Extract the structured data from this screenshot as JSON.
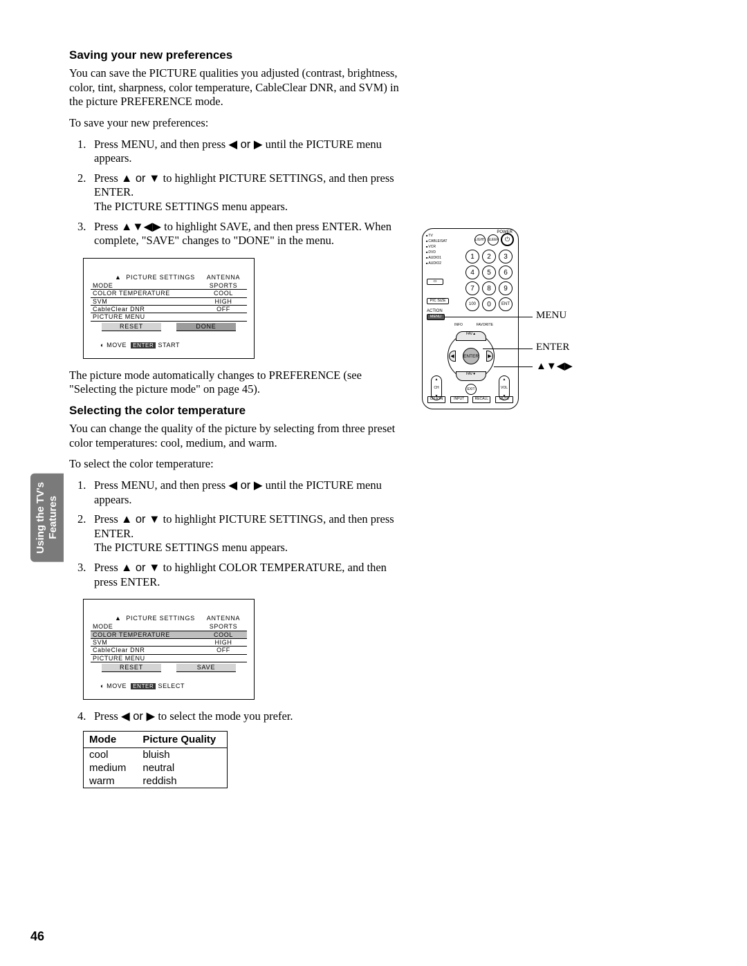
{
  "page_number": "46",
  "side_tab": "Using the TV's\nFeatures",
  "sec1": {
    "heading": "Saving your new preferences",
    "intro": "You can save the PICTURE qualities you adjusted (contrast, brightness, color, tint, sharpness, color temperature, CableClear DNR, and SVM) in the picture PREFERENCE mode.",
    "lead": "To save your new preferences:",
    "step1a": "Press MENU, and then press ",
    "step1b": " until the PICTURE menu appears.",
    "step2a": "Press ",
    "step2b": " to highlight PICTURE SETTINGS, and then press ENTER.",
    "step2c": "The PICTURE SETTINGS menu appears.",
    "step3a": "Press ",
    "step3b": " to highlight SAVE, and then press ENTER. When complete, \"SAVE\" changes to \"DONE\" in the menu.",
    "after": "The picture mode automatically changes to PREFERENCE (see \"Selecting the picture mode\" on page 45)."
  },
  "sec2": {
    "heading": "Selecting the color temperature",
    "intro": "You can change the quality of the picture by selecting from three preset color temperatures: cool, medium, and warm.",
    "lead": "To select the color temperature:",
    "step1a": "Press MENU, and then press ",
    "step1b": " until the PICTURE menu appears.",
    "step2a": "Press ",
    "step2b": " to highlight PICTURE SETTINGS, and then press ENTER.",
    "step2c": "The PICTURE SETTINGS menu appears.",
    "step3a": "Press ",
    "step3b": " to highlight COLOR TEMPERATURE, and then press ENTER.",
    "step4": " to select the mode you prefer."
  },
  "osd1": {
    "title": "PICTURE SETTINGS",
    "title2": "ANTENNA",
    "rows": [
      {
        "lbl": "MODE",
        "val": "SPORTS",
        "hl": false
      },
      {
        "lbl": "COLOR TEMPERATURE",
        "val": "COOL",
        "hl": false
      },
      {
        "lbl": "SVM",
        "val": "HIGH",
        "hl": false
      },
      {
        "lbl": "CableClear DNR",
        "val": "OFF",
        "hl": false
      }
    ],
    "last": "PICTURE MENU",
    "btn1": "RESET",
    "btn2": "DONE",
    "active": 2,
    "foot1": "MOVE",
    "foot2": "ENTER",
    "foot3": "START"
  },
  "osd2": {
    "title": "PICTURE SETTINGS",
    "title2": "ANTENNA",
    "rows": [
      {
        "lbl": "MODE",
        "val": "SPORTS",
        "hl": false
      },
      {
        "lbl": "COLOR TEMPERATURE",
        "val": "COOL",
        "hl": true
      },
      {
        "lbl": "SVM",
        "val": "HIGH",
        "hl": false
      },
      {
        "lbl": "CableClear DNR",
        "val": "OFF",
        "hl": false
      }
    ],
    "last": "PICTURE MENU",
    "btn1": "RESET",
    "btn2": "SAVE",
    "active": 0,
    "foot1": "MOVE",
    "foot2": "ENTER",
    "foot3": "SELECT"
  },
  "mode_table": {
    "h1": "Mode",
    "h2": "Picture Quality",
    "rows": [
      {
        "m": "cool",
        "q": "bluish"
      },
      {
        "m": "medium",
        "q": "neutral"
      },
      {
        "m": "warm",
        "q": "reddish"
      }
    ]
  },
  "remote": {
    "devices": [
      "TV",
      "CABLE/SAT",
      "VCR",
      "DVD",
      "AUDIO1",
      "AUDIO2"
    ],
    "labels": {
      "menu": "MENU",
      "enter": "ENTER",
      "arrows": "▲▼◀▶"
    },
    "small": {
      "power": "POWER",
      "light": "LIGHT",
      "sleep": "SLEEP",
      "lock": "█",
      "picsize": "PIC SIZE",
      "action": "ACTION",
      "menu": "MENU",
      "ent": "ENT",
      "chrtn": "CH RTN",
      "input": "INPUT",
      "recall": "RECALL",
      "mute": "MUTE",
      "fav": "FAV",
      "exit": "EXIT",
      "ch": "CH",
      "vol": "VOL",
      "info": "INFO",
      "favorite": "FAVORITE"
    }
  },
  "arrows": {
    "l": "◀",
    "r": "▶",
    "u": "▲",
    "d": "▼",
    "lr": "◀ or ▶",
    "ud": "▲ or ▼",
    "all": "▲▼◀▶"
  }
}
